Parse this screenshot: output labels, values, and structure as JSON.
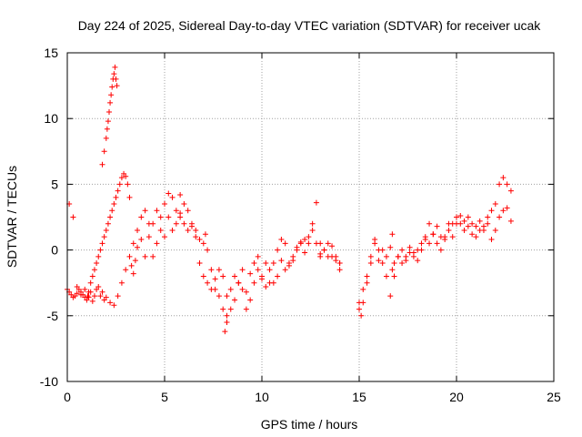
{
  "chart_data": {
    "type": "scatter",
    "title": "Day 224 of 2025, Sidereal Day-to-day VTEC variation (SDTVAR) for receiver ucak",
    "xlabel": "GPS time / hours",
    "ylabel": "SDTVAR / TECUs",
    "xlim": [
      0,
      25
    ],
    "ylim": [
      -10,
      15
    ],
    "xticks": [
      0,
      5,
      10,
      15,
      20,
      25
    ],
    "yticks": [
      -10,
      -5,
      0,
      5,
      10,
      15
    ],
    "xtick_labels": [
      "0",
      "5",
      "10",
      "15",
      "20",
      "25"
    ],
    "ytick_labels": [
      "-10",
      "-5",
      "0",
      "5",
      "10",
      "15"
    ],
    "grid": true,
    "marker": "+",
    "series": [
      {
        "name": "SDTVAR",
        "color": "#ff0000",
        "x": [
          0.0,
          0.1,
          0.2,
          0.3,
          0.4,
          0.5,
          0.6,
          0.7,
          0.8,
          0.9,
          1.0,
          1.05,
          1.1,
          1.2,
          1.3,
          1.4,
          1.5,
          1.6,
          1.7,
          1.8,
          1.9,
          2.0,
          2.1,
          2.2,
          2.3,
          2.4,
          2.5,
          2.6,
          2.7,
          2.8,
          2.9,
          3.0,
          3.1,
          3.2,
          3.3,
          3.4,
          3.5,
          3.6,
          3.8,
          4.0,
          4.2,
          4.4,
          4.6,
          4.8,
          5.0,
          5.2,
          5.4,
          5.6,
          5.8,
          6.0,
          6.2,
          6.4,
          6.6,
          6.8,
          7.0,
          7.2,
          7.4,
          7.6,
          7.8,
          8.0,
          8.1,
          8.2,
          8.4,
          8.6,
          8.8,
          9.0,
          9.2,
          9.4,
          9.6,
          9.8,
          10.0,
          10.2,
          10.4,
          10.6,
          10.8,
          11.0,
          11.2,
          11.4,
          11.6,
          11.8,
          12.0,
          12.2,
          12.4,
          12.6,
          12.8,
          13.0,
          13.2,
          13.4,
          13.6,
          13.8,
          14.0,
          15.0,
          15.1,
          15.2,
          15.4,
          15.6,
          15.8,
          16.0,
          16.2,
          16.4,
          16.6,
          16.8,
          17.0,
          17.2,
          17.4,
          17.6,
          17.8,
          18.0,
          18.2,
          18.4,
          18.6,
          18.8,
          19.0,
          19.2,
          19.4,
          19.6,
          19.8,
          20.0,
          20.2,
          20.4,
          20.6,
          20.8,
          21.0,
          21.2,
          21.4,
          21.6,
          21.8,
          22.0,
          22.2,
          22.4,
          22.6,
          22.8,
          0.1,
          0.3,
          0.5,
          0.7,
          0.9,
          1.1,
          1.2,
          1.3,
          1.4,
          1.5,
          1.6,
          1.7,
          1.8,
          1.9,
          2.0,
          2.2,
          2.4,
          2.6,
          2.8,
          3.0,
          3.2,
          3.4,
          3.6,
          3.8,
          4.0,
          4.2,
          4.4,
          4.6,
          4.8,
          5.0,
          5.2,
          5.4,
          5.6,
          5.8,
          6.0,
          6.2,
          6.4,
          6.6,
          6.8,
          7.0,
          7.2,
          7.4,
          7.6,
          7.8,
          8.0,
          8.2,
          8.4,
          8.6,
          8.8,
          9.0,
          9.2,
          9.4,
          9.6,
          9.8,
          10.0,
          10.2,
          10.4,
          10.6,
          10.8,
          11.0,
          11.2,
          11.4,
          11.6,
          11.8,
          12.0,
          12.2,
          12.4,
          12.6,
          12.8,
          13.0,
          13.2,
          13.4,
          13.6,
          13.8,
          14.0,
          15.0,
          15.2,
          15.4,
          15.6,
          15.8,
          16.0,
          16.2,
          16.4,
          16.6,
          16.8,
          17.0,
          17.2,
          17.4,
          17.6,
          17.8,
          18.0,
          18.2,
          18.4,
          18.6,
          18.8,
          19.0,
          19.2,
          19.4,
          19.6,
          19.8,
          20.0,
          20.2,
          20.4,
          20.6,
          20.8,
          21.0,
          21.2,
          21.4,
          21.6,
          21.8,
          22.0,
          22.2,
          22.4,
          22.6,
          22.8,
          1.8,
          1.9,
          2.0,
          2.05,
          2.1,
          2.15,
          2.2,
          2.25,
          2.3,
          2.35,
          2.4,
          2.45,
          2.5,
          2.55,
          8.2,
          8.2,
          5.8,
          7.1,
          13.0,
          14.0,
          16.7,
          16.7
        ],
        "y": [
          -3.0,
          -3.2,
          -3.4,
          -3.6,
          -3.5,
          -3.3,
          -3.0,
          -3.2,
          -3.4,
          -3.6,
          -3.8,
          -3.5,
          -3.2,
          -2.5,
          -2.0,
          -1.5,
          -1.0,
          -0.5,
          0.0,
          0.5,
          1.0,
          1.5,
          2.0,
          2.5,
          3.0,
          3.5,
          4.0,
          4.5,
          5.0,
          5.5,
          5.8,
          5.6,
          5.0,
          4.0,
          -1.2,
          -1.8,
          -0.8,
          0.2,
          0.8,
          -0.5,
          1.0,
          2.0,
          3.0,
          2.5,
          3.5,
          4.3,
          4.0,
          3.0,
          2.5,
          2.0,
          1.5,
          1.8,
          1.0,
          -1.0,
          -2.0,
          -2.5,
          -3.0,
          -2.2,
          -3.5,
          -4.5,
          -6.2,
          -5.5,
          -3.0,
          -2.0,
          -2.5,
          -3.0,
          -4.5,
          -1.8,
          -1.0,
          -0.5,
          -2.0,
          -2.8,
          -2.5,
          -1.0,
          0.0,
          0.8,
          0.5,
          -1.0,
          -0.5,
          0.2,
          0.6,
          -0.2,
          1.0,
          2.0,
          3.6,
          0.5,
          0.0,
          -0.5,
          0.3,
          -0.5,
          -1.5,
          -4.5,
          -5.0,
          -4.0,
          -2.5,
          -1.0,
          0.5,
          -0.8,
          0.0,
          -0.5,
          0.2,
          -1.0,
          -0.5,
          -1.0,
          -0.8,
          -0.2,
          -0.5,
          0.0,
          0.5,
          1.0,
          0.5,
          1.2,
          1.8,
          1.0,
          0.8,
          1.5,
          2.0,
          2.5,
          2.0,
          1.5,
          2.5,
          2.0,
          1.8,
          2.2,
          1.5,
          2.5,
          3.0,
          3.5,
          5.0,
          5.5,
          5.0,
          4.5,
          3.5,
          2.5,
          -2.8,
          -3.4,
          -3.0,
          -3.6,
          -3.2,
          -3.9,
          -3.5,
          -3.0,
          -2.8,
          -3.5,
          -3.2,
          -3.8,
          -3.6,
          -4.0,
          -4.2,
          -3.5,
          -2.5,
          -1.5,
          -0.5,
          0.5,
          1.5,
          2.5,
          3.0,
          2.0,
          -0.5,
          0.5,
          1.5,
          1.0,
          2.5,
          1.5,
          2.0,
          2.8,
          3.5,
          3.0,
          2.0,
          1.5,
          0.8,
          0.5,
          0.0,
          -1.5,
          -3.0,
          -1.5,
          -2.0,
          -3.5,
          -4.5,
          -3.8,
          -2.5,
          -1.5,
          -3.2,
          -3.8,
          -2.5,
          -1.5,
          -2.2,
          -1.0,
          -1.5,
          -2.5,
          -2.0,
          -0.8,
          -1.5,
          -1.2,
          -0.8,
          0.0,
          0.5,
          0.8,
          0.5,
          1.5,
          0.5,
          -0.3,
          0.0,
          0.5,
          -0.5,
          -0.8,
          -1.0,
          -4.0,
          -3.0,
          -2.0,
          -0.5,
          0.8,
          0.0,
          -1.0,
          -2.0,
          -3.5,
          -2.0,
          -0.5,
          0.0,
          -0.5,
          0.2,
          -0.2,
          -0.8,
          0.0,
          0.8,
          2.0,
          1.2,
          0.5,
          0.0,
          1.0,
          2.0,
          1.0,
          2.0,
          2.6,
          2.2,
          1.8,
          1.2,
          1.0,
          1.5,
          1.8,
          2.0,
          0.8,
          1.5,
          2.5,
          3.0,
          3.2,
          2.2,
          6.5,
          7.5,
          8.5,
          9.2,
          9.8,
          10.5,
          11.2,
          11.8,
          12.4,
          13.0,
          13.4,
          13.9,
          13.0,
          12.5,
          -5.0,
          -5.5,
          4.2,
          1.2,
          -0.5,
          -1.0,
          -1.5,
          1.2
        ]
      }
    ]
  }
}
